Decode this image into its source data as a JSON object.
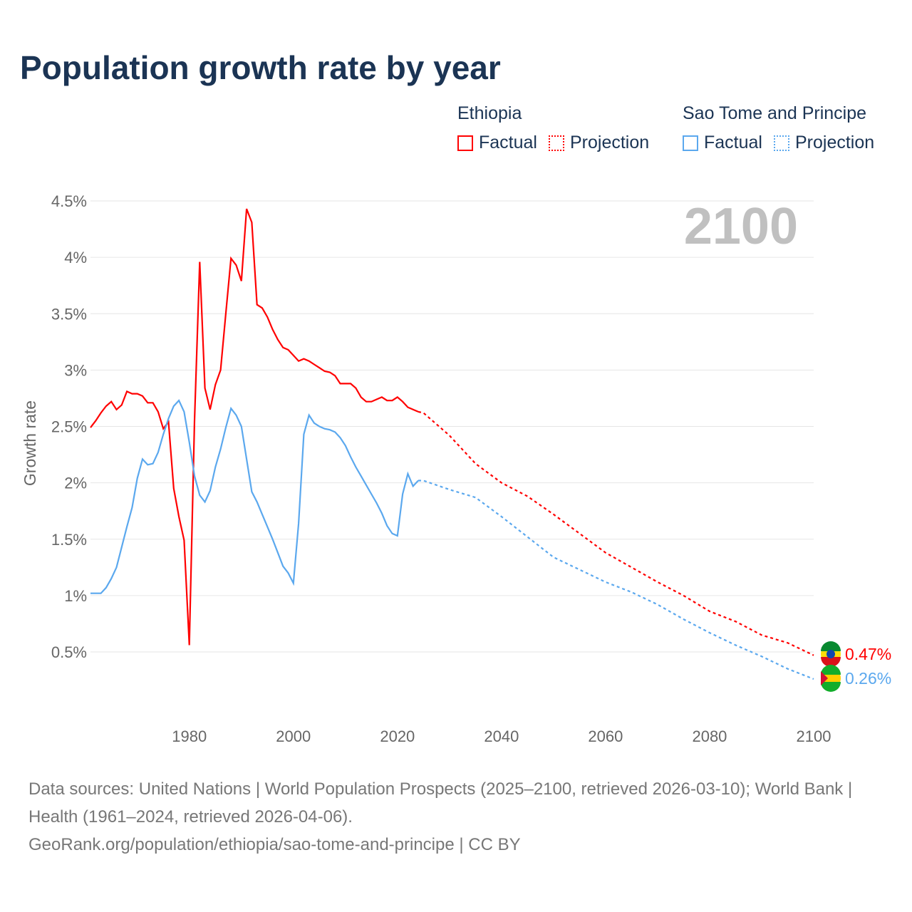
{
  "title": "Population growth rate by year",
  "legend": {
    "groups": [
      {
        "country": "Ethiopia",
        "factual": "Factual",
        "projection": "Projection",
        "color": "#ff0000"
      },
      {
        "country": "Sao Tome and Principe",
        "factual": "Factual",
        "projection": "Projection",
        "color": "#5ba8ee"
      }
    ]
  },
  "footer": {
    "sources": "Data sources: United Nations | World Population Prospects (2025–2100, retrieved 2026-03-10); World Bank | Health (1961–2024, retrieved 2026-04-06).",
    "link": "GeoRank.org/population/ethiopia/sao-tome-and-principe | CC BY"
  },
  "chart_data": {
    "type": "line",
    "title": "Population growth rate by year",
    "xlabel": "",
    "ylabel": "Growth rate",
    "year_label": "2100",
    "xlim": [
      1961,
      2100
    ],
    "ylim": [
      0.5,
      4.5
    ],
    "xticks": [
      "1980",
      "2000",
      "2020",
      "2040",
      "2060",
      "2080",
      "2100"
    ],
    "yticks": [
      "0.5%",
      "1%",
      "1.5%",
      "2%",
      "2.5%",
      "3%",
      "3.5%",
      "4%",
      "4.5%"
    ],
    "grid": true,
    "series": [
      {
        "name": "Ethiopia",
        "color": "#ff0000",
        "end_label": "0.47%",
        "factual": {
          "x": [
            1961,
            1962,
            1963,
            1964,
            1965,
            1966,
            1967,
            1968,
            1969,
            1970,
            1971,
            1972,
            1973,
            1974,
            1975,
            1976,
            1977,
            1978,
            1979,
            1980,
            1981,
            1982,
            1983,
            1984,
            1985,
            1986,
            1987,
            1988,
            1989,
            1990,
            1991,
            1992,
            1993,
            1994,
            1995,
            1996,
            1997,
            1998,
            1999,
            2000,
            2001,
            2002,
            2003,
            2004,
            2005,
            2006,
            2007,
            2008,
            2009,
            2010,
            2011,
            2012,
            2013,
            2014,
            2015,
            2016,
            2017,
            2018,
            2019,
            2020,
            2021,
            2022,
            2023,
            2024
          ],
          "y": [
            2.49,
            2.55,
            2.62,
            2.68,
            2.72,
            2.65,
            2.69,
            2.81,
            2.79,
            2.79,
            2.77,
            2.71,
            2.71,
            2.63,
            2.48,
            2.54,
            1.95,
            1.7,
            1.49,
            0.56,
            2.55,
            3.96,
            2.84,
            2.65,
            2.87,
            3.0,
            3.5,
            3.99,
            3.93,
            3.79,
            4.43,
            4.31,
            3.58,
            3.55,
            3.47,
            3.36,
            3.27,
            3.2,
            3.18,
            3.13,
            3.08,
            3.1,
            3.08,
            3.05,
            3.02,
            2.99,
            2.98,
            2.95,
            2.88,
            2.88,
            2.88,
            2.84,
            2.76,
            2.72,
            2.72,
            2.74,
            2.76,
            2.73,
            2.73,
            2.76,
            2.72,
            2.67,
            2.65,
            2.63
          ]
        },
        "projection": {
          "x": [
            2024,
            2025,
            2030,
            2035,
            2040,
            2045,
            2050,
            2055,
            2060,
            2065,
            2070,
            2075,
            2080,
            2085,
            2090,
            2095,
            2100
          ],
          "y": [
            2.63,
            2.62,
            2.42,
            2.17,
            2.0,
            1.88,
            1.72,
            1.55,
            1.38,
            1.25,
            1.12,
            1.0,
            0.86,
            0.77,
            0.65,
            0.58,
            0.47
          ]
        }
      },
      {
        "name": "Sao Tome and Principe",
        "color": "#5ba8ee",
        "end_label": "0.26%",
        "factual": {
          "x": [
            1961,
            1962,
            1963,
            1964,
            1965,
            1966,
            1967,
            1968,
            1969,
            1970,
            1971,
            1972,
            1973,
            1974,
            1975,
            1976,
            1977,
            1978,
            1979,
            1980,
            1981,
            1982,
            1983,
            1984,
            1985,
            1986,
            1987,
            1988,
            1989,
            1990,
            1991,
            1992,
            1993,
            1994,
            1995,
            1996,
            1997,
            1998,
            1999,
            2000,
            2001,
            2002,
            2003,
            2004,
            2005,
            2006,
            2007,
            2008,
            2009,
            2010,
            2011,
            2012,
            2013,
            2014,
            2015,
            2016,
            2017,
            2018,
            2019,
            2020,
            2021,
            2022,
            2023,
            2024
          ],
          "y": [
            1.02,
            1.02,
            1.02,
            1.07,
            1.15,
            1.25,
            1.43,
            1.61,
            1.78,
            2.04,
            2.21,
            2.16,
            2.17,
            2.27,
            2.43,
            2.57,
            2.68,
            2.73,
            2.63,
            2.36,
            2.06,
            1.89,
            1.83,
            1.93,
            2.14,
            2.3,
            2.49,
            2.66,
            2.6,
            2.5,
            2.21,
            1.92,
            1.83,
            1.72,
            1.61,
            1.5,
            1.38,
            1.26,
            1.2,
            1.11,
            1.64,
            2.43,
            2.6,
            2.53,
            2.5,
            2.48,
            2.47,
            2.45,
            2.4,
            2.33,
            2.23,
            2.14,
            2.06,
            1.98,
            1.9,
            1.82,
            1.73,
            1.62,
            1.55,
            1.53,
            1.9,
            2.08,
            1.97,
            2.02
          ]
        },
        "projection": {
          "x": [
            2024,
            2025,
            2030,
            2035,
            2040,
            2045,
            2050,
            2055,
            2060,
            2065,
            2070,
            2075,
            2080,
            2085,
            2090,
            2095,
            2100
          ],
          "y": [
            2.02,
            2.02,
            1.94,
            1.87,
            1.7,
            1.52,
            1.34,
            1.23,
            1.12,
            1.03,
            0.92,
            0.79,
            0.67,
            0.56,
            0.46,
            0.35,
            0.26
          ]
        }
      }
    ]
  }
}
